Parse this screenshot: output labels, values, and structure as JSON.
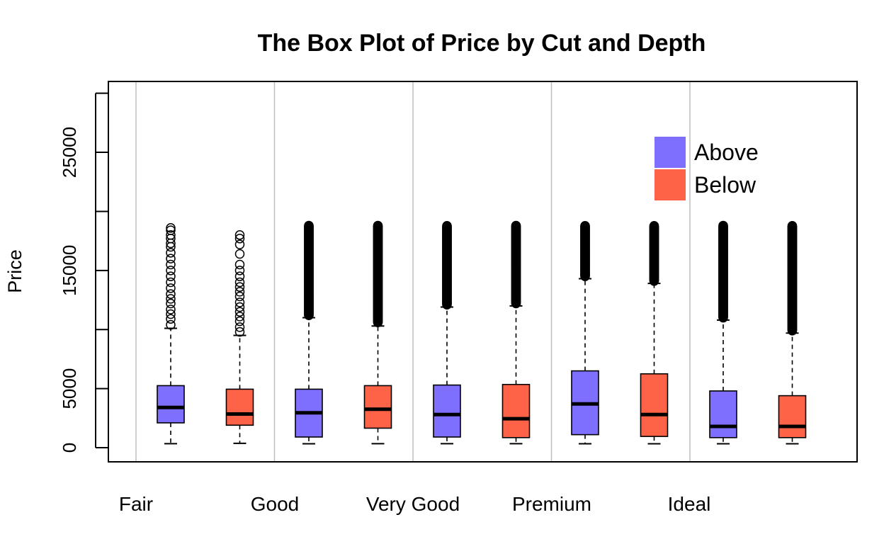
{
  "chart_data": {
    "type": "box",
    "title": "The Box Plot of Price by Cut and Depth",
    "xlabel": "",
    "ylabel": "Price",
    "ylim": [
      -1200,
      31000
    ],
    "yticks": [
      0,
      5000,
      15000,
      25000
    ],
    "yticks_minor": [
      10000,
      20000,
      30000
    ],
    "grid": "vertical lines between categories",
    "categories": [
      "Fair",
      "Good",
      "Very Good",
      "Premium",
      "Ideal"
    ],
    "legend": {
      "position": "top-right",
      "entries": [
        {
          "label": "Above",
          "color": "#7f6fff"
        },
        {
          "label": "Below",
          "color": "#ff6347"
        }
      ]
    },
    "series_colors": {
      "Above": "#7f6fff",
      "Below": "#ff6347"
    },
    "boxes": [
      {
        "category": "Fair",
        "group": "Above",
        "min": 337,
        "q1": 2100,
        "median": 3400,
        "q3": 5250,
        "whisker_high": 10100,
        "outliers": [
          10400,
          10900,
          11300,
          11700,
          12200,
          12600,
          13000,
          13500,
          14000,
          14500,
          15000,
          15500,
          16000,
          16500,
          17000,
          17300,
          17700,
          18000,
          18400,
          18600
        ]
      },
      {
        "category": "Fair",
        "group": "Below",
        "min": 369,
        "q1": 1900,
        "median": 2850,
        "q3": 4950,
        "whisker_high": 9500,
        "outliers": [
          9800,
          10200,
          10700,
          11100,
          11500,
          11900,
          12300,
          12800,
          13200,
          13600,
          14000,
          14500,
          15000,
          15500,
          16400,
          17200,
          17700,
          18000
        ]
      },
      {
        "category": "Good",
        "group": "Above",
        "min": 327,
        "q1": 900,
        "median": 2950,
        "q3": 4950,
        "whisker_high": 11000,
        "outliers": [
          11200,
          11800,
          12400,
          13000,
          13600,
          14200,
          14800,
          15400,
          16000,
          16600,
          17200,
          17800,
          18400,
          18800
        ]
      },
      {
        "category": "Good",
        "group": "Below",
        "min": 335,
        "q1": 1650,
        "median": 3250,
        "q3": 5250,
        "whisker_high": 10300,
        "outliers": [
          10600,
          11200,
          11800,
          12500,
          13100,
          13800,
          14500,
          15200,
          16000,
          16800,
          17400,
          18000,
          18500,
          18800
        ]
      },
      {
        "category": "Very Good",
        "group": "Above",
        "min": 336,
        "q1": 900,
        "median": 2800,
        "q3": 5300,
        "whisker_high": 11900,
        "outliers": [
          12100,
          12600,
          13100,
          13600,
          14100,
          14600,
          15100,
          15600,
          16100,
          16600,
          17100,
          17600,
          18100,
          18600,
          18800
        ]
      },
      {
        "category": "Very Good",
        "group": "Below",
        "min": 336,
        "q1": 850,
        "median": 2450,
        "q3": 5350,
        "whisker_high": 12000,
        "outliers": [
          12200,
          12700,
          13200,
          13700,
          14200,
          14700,
          15200,
          15700,
          16200,
          16700,
          17200,
          17700,
          18200,
          18600,
          18800
        ]
      },
      {
        "category": "Premium",
        "group": "Above",
        "min": 326,
        "q1": 1100,
        "median": 3700,
        "q3": 6500,
        "whisker_high": 14300,
        "outliers": [
          14500,
          14900,
          15300,
          15700,
          16100,
          16500,
          16900,
          17300,
          17700,
          18100,
          18500,
          18800
        ]
      },
      {
        "category": "Premium",
        "group": "Below",
        "min": 326,
        "q1": 950,
        "median": 2800,
        "q3": 6250,
        "whisker_high": 13900,
        "outliers": [
          14100,
          14500,
          14900,
          15300,
          15700,
          16100,
          16500,
          16900,
          17300,
          17700,
          18100,
          18500,
          18800
        ]
      },
      {
        "category": "Ideal",
        "group": "Above",
        "min": 326,
        "q1": 850,
        "median": 1800,
        "q3": 4800,
        "whisker_high": 10800,
        "outliers": [
          11000,
          11500,
          12000,
          12500,
          13000,
          13500,
          14000,
          14500,
          15000,
          15500,
          16000,
          16500,
          17000,
          17500,
          18000,
          18500,
          18800
        ]
      },
      {
        "category": "Ideal",
        "group": "Below",
        "min": 326,
        "q1": 850,
        "median": 1800,
        "q3": 4400,
        "whisker_high": 9700,
        "outliers": [
          9900,
          10400,
          10900,
          11400,
          11900,
          12400,
          12900,
          13400,
          13900,
          14400,
          14900,
          15400,
          15900,
          16400,
          16900,
          17400,
          17900,
          18400,
          18800
        ]
      }
    ]
  }
}
